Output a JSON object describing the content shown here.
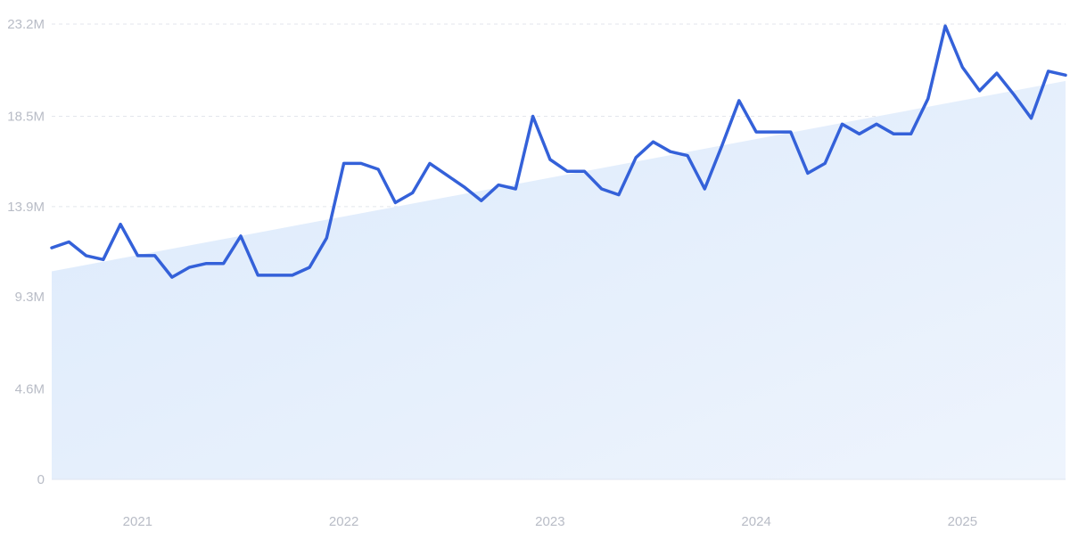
{
  "colors": {
    "line": "#3461d9",
    "trend_fill_top": "#dceafb",
    "trend_fill_bottom": "#eef4fd",
    "tick_text": "#b8bcc6",
    "grid": "#e3e6ec"
  },
  "chart_data": {
    "type": "line",
    "title": "",
    "xlabel": "",
    "ylabel": "",
    "grid": true,
    "legend": "none",
    "x_range": [
      "2020-08",
      "2025-07"
    ],
    "ylim": [
      0,
      23200000
    ],
    "y_ticks": [
      {
        "value": 0,
        "label": "0"
      },
      {
        "value": 4600000,
        "label": "4.6M"
      },
      {
        "value": 9300000,
        "label": "9.3M"
      },
      {
        "value": 13900000,
        "label": "13.9M"
      },
      {
        "value": 18500000,
        "label": "18.5M"
      },
      {
        "value": 23200000,
        "label": "23.2M"
      }
    ],
    "x_ticks": [
      {
        "value": "2021-01",
        "label": "2021"
      },
      {
        "value": "2022-01",
        "label": "2022"
      },
      {
        "value": "2023-01",
        "label": "2023"
      },
      {
        "value": "2024-01",
        "label": "2024"
      },
      {
        "value": "2025-01",
        "label": "2025"
      }
    ],
    "trend": {
      "type": "area",
      "x": [
        "2020-08",
        "2025-07"
      ],
      "values": [
        10600000,
        20300000
      ]
    },
    "series": [
      {
        "x": [
          "2020-08",
          "2020-09",
          "2020-10",
          "2020-11",
          "2020-12",
          "2021-01",
          "2021-02",
          "2021-03",
          "2021-04",
          "2021-05",
          "2021-06",
          "2021-07",
          "2021-08",
          "2021-09",
          "2021-10",
          "2021-11",
          "2021-12",
          "2022-01",
          "2022-02",
          "2022-03",
          "2022-04",
          "2022-05",
          "2022-06",
          "2022-07",
          "2022-08",
          "2022-09",
          "2022-10",
          "2022-11",
          "2022-12",
          "2023-01",
          "2023-02",
          "2023-03",
          "2023-04",
          "2023-05",
          "2023-06",
          "2023-07",
          "2023-08",
          "2023-09",
          "2023-10",
          "2023-11",
          "2023-12",
          "2024-01",
          "2024-02",
          "2024-03",
          "2024-04",
          "2024-05",
          "2024-06",
          "2024-07",
          "2024-08",
          "2024-09",
          "2024-10",
          "2024-11",
          "2024-12",
          "2025-01",
          "2025-02",
          "2025-03",
          "2025-04",
          "2025-05",
          "2025-06",
          "2025-07"
        ],
        "values": [
          11800000,
          12100000,
          11400000,
          11200000,
          13000000,
          11400000,
          11400000,
          10300000,
          10800000,
          11000000,
          11000000,
          12400000,
          10400000,
          10400000,
          10400000,
          10800000,
          12300000,
          16100000,
          16100000,
          15800000,
          14100000,
          14600000,
          16100000,
          15500000,
          14900000,
          14200000,
          15000000,
          14800000,
          18500000,
          16300000,
          15700000,
          15700000,
          14800000,
          14500000,
          16400000,
          17200000,
          16700000,
          16500000,
          14800000,
          17000000,
          19300000,
          17700000,
          17700000,
          17700000,
          15600000,
          16100000,
          18100000,
          17600000,
          18100000,
          17600000,
          17600000,
          19400000,
          23100000,
          21000000,
          19800000,
          20700000,
          19600000,
          18400000,
          20800000,
          20600000
        ]
      }
    ]
  }
}
